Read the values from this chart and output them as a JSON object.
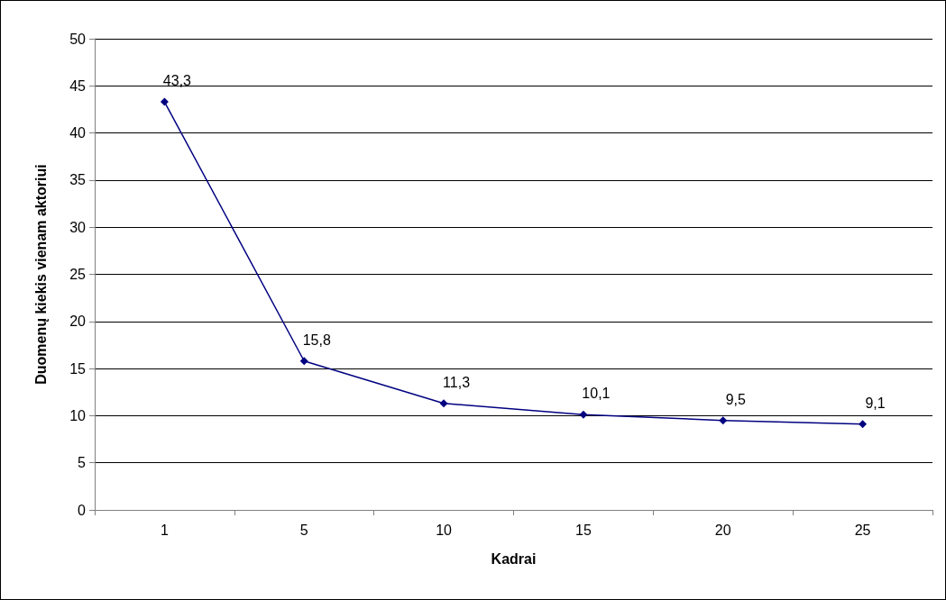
{
  "chart_data": {
    "type": "line",
    "xlabel": "Kadrai",
    "ylabel": "Duomenų kiekis vienam aktoriui",
    "categories": [
      "1",
      "5",
      "10",
      "15",
      "20",
      "25"
    ],
    "series": [
      {
        "color": "#000080",
        "values": [
          43.3,
          15.8,
          11.3,
          10.1,
          9.5,
          9.1
        ],
        "value_labels": [
          "43,3",
          "15,8",
          "11,3",
          "10,1",
          "9,5",
          "9,1"
        ]
      }
    ],
    "ylim": [
      0,
      50
    ],
    "yticks": [
      0,
      5,
      10,
      15,
      20,
      25,
      30,
      35,
      40,
      45,
      50
    ],
    "grid": "y",
    "marker": "diamond",
    "line_style": "solid"
  }
}
